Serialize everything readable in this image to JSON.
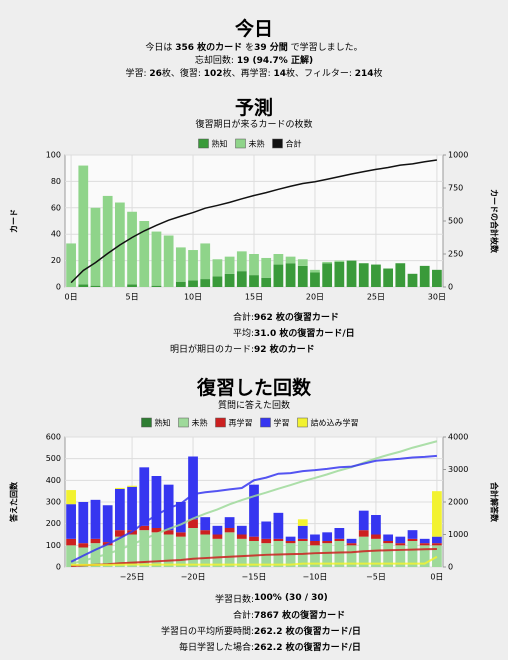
{
  "today": {
    "title": "今日",
    "lines": [
      [
        "今日は ",
        "356 枚のカード",
        " を",
        "39 分間",
        " で学習しました。"
      ],
      [
        "忘却回数: ",
        "19 (94.7% 正解)"
      ],
      [
        "学習: ",
        "26",
        "枚、復習: ",
        "102",
        "枚、再学習: ",
        "14",
        "枚、フィルター: ",
        "214",
        "枚"
      ]
    ]
  },
  "forecast_summary": [
    [
      "合計: ",
      "962 枚の復習カード"
    ],
    [
      "平均: ",
      "31.0 枚の復習カード/日"
    ],
    [
      "明日が期日のカード: ",
      "92 枚のカード"
    ]
  ],
  "reviews_summary": [
    [
      "学習日数: ",
      "100% (30 / 30)"
    ],
    [
      "合計: ",
      "7867 枚の復習カード"
    ],
    [
      "学習日の平均所要時間: ",
      "262.2 枚の復習カード/日"
    ],
    [
      "毎日学習した場合: ",
      "262.2 枚の復習カード/日"
    ]
  ],
  "chart_data": [
    {
      "type": "bar",
      "title": "予測",
      "subtitle": "復習期日が来るカードの枚数",
      "y_label": "カード",
      "y2_label": "カードの合計枚数",
      "grid": true,
      "x": [
        0,
        1,
        2,
        3,
        4,
        5,
        6,
        7,
        8,
        9,
        10,
        11,
        12,
        13,
        14,
        15,
        16,
        17,
        18,
        19,
        20,
        21,
        22,
        23,
        24,
        25,
        26,
        27,
        28,
        29,
        30
      ],
      "xlim": [
        -0.5,
        30.5
      ],
      "xticks": [
        {
          "value": 0,
          "label": "0日"
        },
        {
          "value": 5,
          "label": "5日"
        },
        {
          "value": 10,
          "label": "10日"
        },
        {
          "value": 15,
          "label": "15日"
        },
        {
          "value": 20,
          "label": "20日"
        },
        {
          "value": 25,
          "label": "25日"
        },
        {
          "value": 30,
          "label": "30日"
        }
      ],
      "ylim": [
        0,
        100
      ],
      "yticks": [
        0,
        20,
        40,
        60,
        80,
        100
      ],
      "y2lim": [
        0,
        1000
      ],
      "y2ticks": [
        0,
        250,
        500,
        750,
        1000
      ],
      "series": [
        {
          "name": "熟知",
          "color": "#3a9a3a",
          "values": [
            0,
            2,
            1,
            0,
            0,
            2,
            0,
            1,
            0,
            4,
            5,
            6,
            8,
            10,
            12,
            9,
            7,
            17,
            18,
            16,
            11,
            18,
            19,
            20,
            18,
            17,
            14,
            18,
            10,
            16,
            13
          ]
        },
        {
          "name": "未熟",
          "color": "#8fd48a",
          "values": [
            33,
            90,
            59,
            69,
            64,
            55,
            50,
            41,
            39,
            26,
            23,
            27,
            13,
            13,
            15,
            16,
            15,
            8,
            5,
            5,
            2,
            1,
            1,
            0,
            0,
            0,
            0,
            0,
            0,
            0,
            0
          ]
        },
        {
          "name": "合計",
          "color": "#111111",
          "axis": "y2",
          "values": [
            33,
            125,
            185,
            254,
            318,
            375,
            425,
            467,
            506,
            536,
            564,
            597,
            618,
            641,
            668,
            693,
            715,
            740,
            763,
            784,
            797,
            816,
            836,
            856,
            874,
            891,
            905,
            923,
            933,
            949,
            962
          ]
        }
      ]
    },
    {
      "type": "bar",
      "title": "復習した回数",
      "subtitle": "質問に答えた回数",
      "y_label": "答えた回数",
      "y2_label": "合計解答数",
      "grid": true,
      "x": [
        -30,
        -29,
        -28,
        -27,
        -26,
        -25,
        -24,
        -23,
        -22,
        -21,
        -20,
        -19,
        -18,
        -17,
        -16,
        -15,
        -14,
        -13,
        -12,
        -11,
        -10,
        -9,
        -8,
        -7,
        -6,
        -5,
        -4,
        -3,
        -2,
        -1,
        0
      ],
      "xlim": [
        -30.5,
        0.5
      ],
      "xticks": [
        {
          "value": -25,
          "label": "−25日"
        },
        {
          "value": -20,
          "label": "−20日"
        },
        {
          "value": -15,
          "label": "−15日"
        },
        {
          "value": -10,
          "label": "−10日"
        },
        {
          "value": -5,
          "label": "−5日"
        },
        {
          "value": 0,
          "label": "0日"
        }
      ],
      "ylim": [
        0,
        600
      ],
      "yticks": [
        0,
        100,
        200,
        300,
        400,
        500,
        600
      ],
      "y2lim": [
        0,
        4000
      ],
      "y2ticks": [
        0,
        1000,
        2000,
        3000,
        4000
      ],
      "series": [
        {
          "name": "熟知",
          "color": "#2e7d32",
          "values": [
            0,
            0,
            0,
            0,
            0,
            0,
            0,
            0,
            0,
            0,
            0,
            0,
            0,
            0,
            0,
            0,
            0,
            0,
            0,
            0,
            0,
            0,
            0,
            0,
            0,
            0,
            0,
            0,
            0,
            0,
            0
          ]
        },
        {
          "name": "未熟",
          "color": "#9ed99a",
          "values": [
            100,
            90,
            110,
            100,
            140,
            150,
            170,
            160,
            150,
            140,
            180,
            150,
            130,
            160,
            130,
            120,
            110,
            120,
            110,
            120,
            100,
            110,
            120,
            100,
            140,
            130,
            110,
            100,
            120,
            100,
            100
          ],
          "cumulative": [
            100,
            190,
            300,
            400,
            540,
            690,
            860,
            1020,
            1170,
            1310,
            1490,
            1640,
            1770,
            1930,
            2060,
            2180,
            2290,
            2410,
            2520,
            2640,
            2740,
            2850,
            2970,
            3070,
            3210,
            3340,
            3450,
            3550,
            3670,
            3770,
            3870
          ]
        },
        {
          "name": "再学習",
          "color": "#cc2020",
          "values": [
            30,
            20,
            20,
            15,
            30,
            20,
            20,
            20,
            20,
            20,
            40,
            20,
            20,
            20,
            20,
            20,
            20,
            10,
            10,
            10,
            20,
            10,
            10,
            10,
            30,
            20,
            10,
            10,
            10,
            10,
            10
          ],
          "cumulative": [
            30,
            50,
            70,
            85,
            115,
            135,
            155,
            175,
            195,
            215,
            255,
            275,
            295,
            315,
            335,
            355,
            375,
            385,
            395,
            405,
            425,
            435,
            445,
            455,
            485,
            505,
            515,
            525,
            535,
            545,
            555
          ]
        },
        {
          "name": "学習",
          "color": "#3636f0",
          "values": [
            160,
            190,
            180,
            170,
            190,
            200,
            270,
            240,
            210,
            140,
            290,
            60,
            40,
            50,
            40,
            240,
            80,
            120,
            20,
            60,
            30,
            40,
            50,
            20,
            90,
            90,
            30,
            30,
            40,
            20,
            30
          ],
          "cumulative": [
            160,
            350,
            530,
            700,
            890,
            1090,
            1360,
            1600,
            1810,
            1950,
            2240,
            2300,
            2340,
            2390,
            2430,
            2670,
            2750,
            2870,
            2890,
            2950,
            2980,
            3020,
            3070,
            3090,
            3180,
            3270,
            3300,
            3330,
            3370,
            3390,
            3420
          ]
        },
        {
          "name": "詰め込み学習",
          "color": "#f2f230",
          "values": [
            65,
            0,
            0,
            0,
            5,
            5,
            0,
            0,
            0,
            0,
            0,
            0,
            0,
            0,
            0,
            0,
            0,
            0,
            0,
            30,
            0,
            0,
            0,
            0,
            0,
            0,
            0,
            0,
            0,
            0,
            210
          ],
          "cumulative": [
            65,
            65,
            65,
            65,
            70,
            75,
            75,
            75,
            75,
            75,
            75,
            75,
            75,
            75,
            75,
            75,
            75,
            75,
            75,
            105,
            105,
            105,
            105,
            105,
            105,
            105,
            105,
            105,
            105,
            105,
            315
          ]
        }
      ]
    }
  ]
}
